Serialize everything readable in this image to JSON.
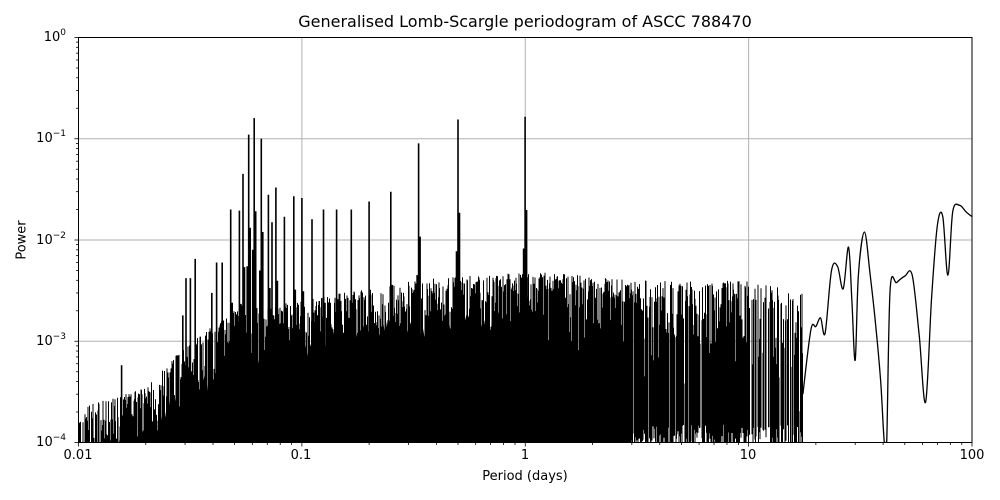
{
  "chart_data": {
    "type": "line",
    "title": "Generalised Lomb-Scargle periodogram of ASCC 788470",
    "xlabel": "Period (days)",
    "ylabel": "Power",
    "xscale": "log",
    "yscale": "log",
    "xlim": [
      0.01,
      100
    ],
    "ylim": [
      0.0001,
      1
    ],
    "grid": true,
    "legend": null,
    "x_ticks": [
      "0.01",
      "0.1",
      "1",
      "10",
      "100"
    ],
    "y_ticks": [
      {
        "base": "10",
        "exp": "0"
      },
      {
        "base": "10",
        "exp": "−1"
      },
      {
        "base": "10",
        "exp": "−2"
      },
      {
        "base": "10",
        "exp": "−3"
      },
      {
        "base": "10",
        "exp": "−4"
      }
    ],
    "line_color": "#000000",
    "grid_color": "#b0b0b0",
    "major_peaks": [
      {
        "period": 0.0612,
        "power": 0.16
      },
      {
        "period": 0.0578,
        "power": 0.11
      },
      {
        "period": 0.0658,
        "power": 0.1
      },
      {
        "period": 0.0545,
        "power": 0.045
      },
      {
        "period": 0.0708,
        "power": 0.028
      },
      {
        "period": 0.0525,
        "power": 0.0195
      },
      {
        "period": 0.0765,
        "power": 0.033
      },
      {
        "period": 0.0735,
        "power": 0.015
      },
      {
        "period": 0.0835,
        "power": 0.017
      },
      {
        "period": 0.092,
        "power": 0.027
      },
      {
        "period": 0.1,
        "power": 0.026
      },
      {
        "period": 0.111,
        "power": 0.016
      },
      {
        "period": 0.125,
        "power": 0.02
      },
      {
        "period": 0.143,
        "power": 0.02
      },
      {
        "period": 0.1665,
        "power": 0.02
      },
      {
        "period": 0.2,
        "power": 0.024
      },
      {
        "period": 0.25,
        "power": 0.03
      },
      {
        "period": 0.333,
        "power": 0.09
      },
      {
        "period": 0.5,
        "power": 0.155
      },
      {
        "period": 0.998,
        "power": 0.165
      },
      {
        "period": 0.048,
        "power": 0.02
      },
      {
        "period": 0.044,
        "power": 0.006
      },
      {
        "period": 0.0415,
        "power": 0.006
      },
      {
        "period": 0.0395,
        "power": 0.003
      },
      {
        "period": 0.0333,
        "power": 0.0065
      },
      {
        "period": 0.0317,
        "power": 0.0042
      },
      {
        "period": 0.0303,
        "power": 0.0042
      },
      {
        "period": 0.0293,
        "power": 0.0018
      },
      {
        "period": 0.0156,
        "power": 0.00058
      }
    ],
    "smooth_tail": {
      "period": [
        17.5,
        19,
        20,
        21,
        22,
        23.5,
        25,
        26.5,
        28,
        29,
        30,
        31,
        33,
        35,
        37,
        39,
        40.5,
        41.5,
        43,
        46,
        50,
        54,
        58,
        62,
        66,
        70,
        74,
        78,
        82,
        88,
        94,
        100
      ],
      "power": [
        0.0003,
        0.0013,
        0.0014,
        0.0017,
        0.0012,
        0.005,
        0.0055,
        0.0033,
        0.0085,
        0.0025,
        0.00065,
        0.0045,
        0.012,
        0.0045,
        0.0015,
        0.0004,
        0.0001,
        0.0001,
        0.0032,
        0.0038,
        0.0044,
        0.0045,
        0.00115,
        0.00025,
        0.0028,
        0.014,
        0.017,
        0.0045,
        0.019,
        0.022,
        0.019,
        0.017
      ]
    },
    "noise_floor": {
      "description": "dense aliasing forest rising from ~1e-4 at 0.01 d to ~3e-3 near 1 d, thinning to discrete oscillations by ~15 d",
      "period": [
        0.01,
        0.02,
        0.03,
        0.05,
        0.1,
        0.3,
        1,
        3,
        10,
        17
      ],
      "typical_max": [
        0.00022,
        0.00035,
        0.0009,
        0.002,
        0.0025,
        0.004,
        0.005,
        0.004,
        0.004,
        0.003
      ]
    }
  }
}
